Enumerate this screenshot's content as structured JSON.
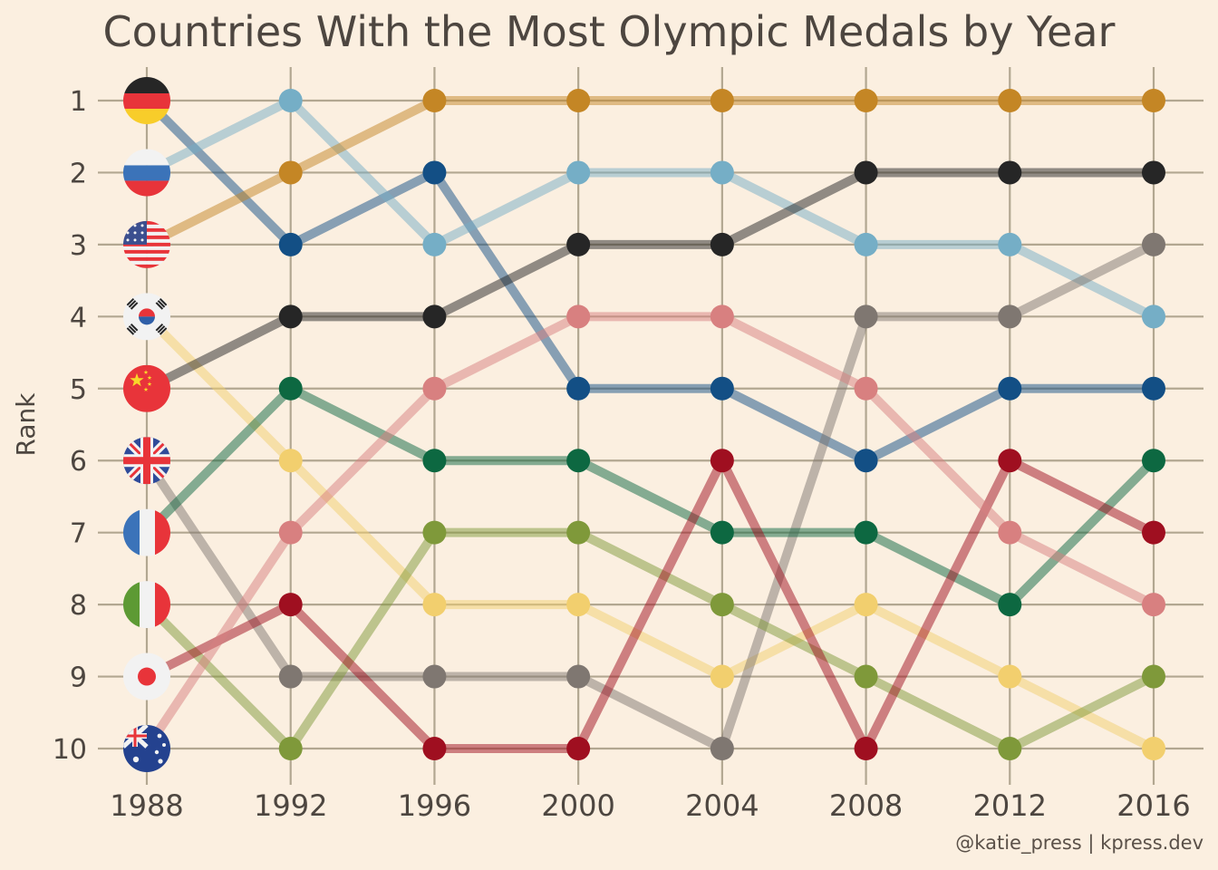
{
  "caption": "@katie_press | kpress.dev",
  "colors": {
    "background": "#fbefe0",
    "grid": "#b2a791",
    "text": "#4d4640"
  },
  "chart_data": {
    "type": "line",
    "title": "Countries With the Most Olympic Medals by Year",
    "xlabel": "",
    "ylabel": "Rank",
    "x": [
      "1988",
      "1992",
      "1996",
      "2000",
      "2004",
      "2008",
      "2012",
      "2016"
    ],
    "y_ticks": [
      "1",
      "2",
      "3",
      "4",
      "5",
      "6",
      "7",
      "8",
      "9",
      "10"
    ],
    "ylim": [
      1,
      10
    ],
    "y_reversed": true,
    "grid": true,
    "legend": "flags at first point",
    "series": [
      {
        "flag": "germany-flag-icon",
        "color": "#134f85",
        "values": [
          1,
          3,
          2,
          5,
          5,
          6,
          5,
          5
        ]
      },
      {
        "flag": "russia-flag-icon",
        "color": "#75aec6",
        "values": [
          2,
          1,
          3,
          2,
          2,
          3,
          3,
          4
        ]
      },
      {
        "flag": "usa-flag-icon",
        "color": "#c48625",
        "values": [
          3,
          2,
          1,
          1,
          1,
          1,
          1,
          1
        ]
      },
      {
        "flag": "south-korea-flag-icon",
        "color": "#f2cf6e",
        "values": [
          4,
          6,
          8,
          8,
          9,
          8,
          9,
          10
        ]
      },
      {
        "flag": "china-flag-icon",
        "color": "#262626",
        "values": [
          5,
          4,
          4,
          3,
          3,
          2,
          2,
          2
        ]
      },
      {
        "flag": "uk-flag-icon",
        "color": "#7f7771",
        "values": [
          6,
          9,
          9,
          9,
          10,
          4,
          4,
          3
        ]
      },
      {
        "flag": "france-flag-icon",
        "color": "#0d6841",
        "values": [
          7,
          5,
          6,
          6,
          7,
          7,
          8,
          6
        ]
      },
      {
        "flag": "italy-flag-icon",
        "color": "#7f993a",
        "values": [
          8,
          10,
          7,
          7,
          8,
          9,
          10,
          9
        ]
      },
      {
        "flag": "japan-flag-icon",
        "color": "#9f0f20",
        "values": [
          9,
          8,
          10,
          10,
          6,
          10,
          6,
          7
        ]
      },
      {
        "flag": "australia-flag-icon",
        "color": "#d88080",
        "values": [
          10,
          7,
          5,
          4,
          4,
          5,
          7,
          8
        ]
      }
    ]
  }
}
